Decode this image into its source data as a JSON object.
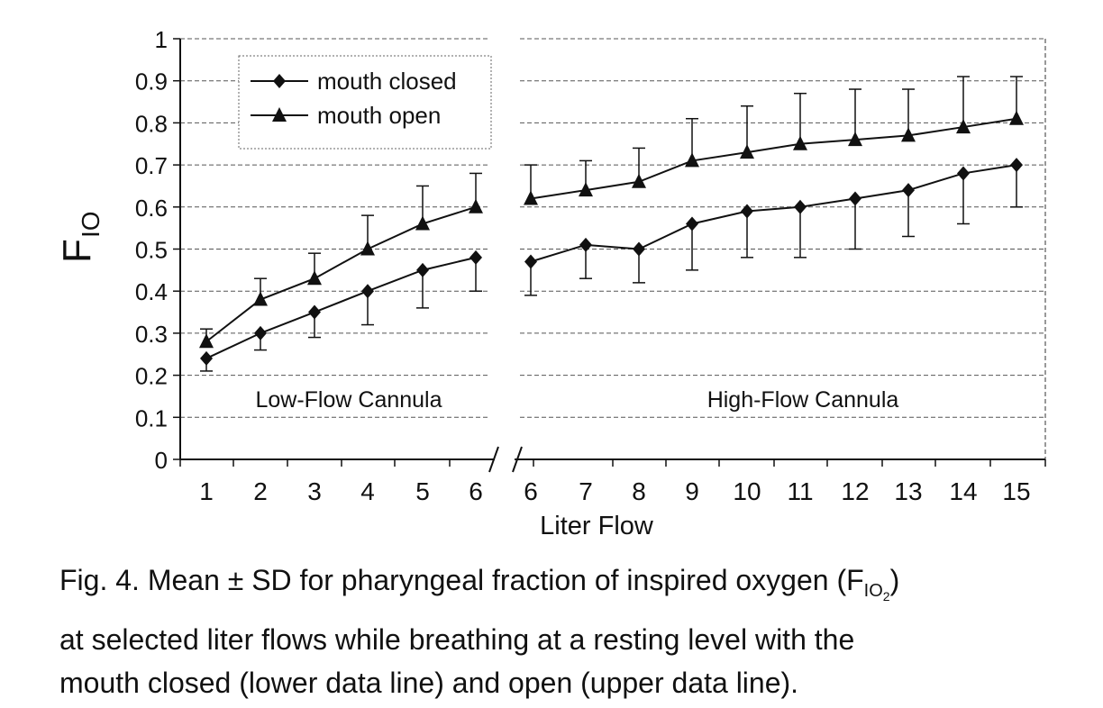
{
  "chart_data": {
    "type": "line",
    "ylabel_main": "F",
    "ylabel_sub": "IO",
    "xlabel": "Liter Flow",
    "ylim": [
      0,
      1
    ],
    "yticks": [
      "0",
      "0.1",
      "0.2",
      "0.3",
      "0.4",
      "0.5",
      "0.6",
      "0.7",
      "0.8",
      "0.9",
      "1"
    ],
    "x": [
      "1",
      "2",
      "3",
      "4",
      "5",
      "6",
      "6",
      "7",
      "8",
      "9",
      "10",
      "11",
      "12",
      "13",
      "14",
      "15"
    ],
    "segments": [
      {
        "label": "Low-Flow Cannula",
        "x": [
          "1",
          "2",
          "3",
          "4",
          "5",
          "6"
        ]
      },
      {
        "label": "High-Flow Cannula",
        "x": [
          "6",
          "7",
          "8",
          "9",
          "10",
          "11",
          "12",
          "13",
          "14",
          "15"
        ]
      }
    ],
    "axis_break": "between 6 and 6",
    "grid": "horizontal dashed",
    "legend_position": "top-left",
    "series": [
      {
        "name": "mouth closed",
        "marker": "diamond",
        "values": [
          0.24,
          0.3,
          0.35,
          0.4,
          0.45,
          0.48,
          0.47,
          0.51,
          0.5,
          0.56,
          0.59,
          0.6,
          0.62,
          0.64,
          0.68,
          0.7
        ],
        "sd": [
          0.03,
          0.04,
          0.06,
          0.08,
          0.09,
          0.08,
          0.08,
          0.08,
          0.08,
          0.11,
          0.11,
          0.12,
          0.12,
          0.11,
          0.12,
          0.1
        ]
      },
      {
        "name": "mouth open",
        "marker": "triangle",
        "values": [
          0.28,
          0.38,
          0.43,
          0.5,
          0.56,
          0.6,
          0.62,
          0.64,
          0.66,
          0.71,
          0.73,
          0.75,
          0.76,
          0.77,
          0.79,
          0.81
        ],
        "sd": [
          0.03,
          0.05,
          0.06,
          0.08,
          0.09,
          0.08,
          0.08,
          0.07,
          0.08,
          0.1,
          0.11,
          0.12,
          0.12,
          0.11,
          0.12,
          0.1
        ]
      }
    ]
  },
  "caption": {
    "prefix": "Fig. 4. Mean ± SD for pharyngeal fraction of inspired oxygen (F",
    "sub": "IO",
    "subsub": "2",
    "suffix": ")",
    "line2": "at selected liter flows while breathing at a resting level with the",
    "line3": "mouth closed (lower data line) and open (upper data line)."
  }
}
